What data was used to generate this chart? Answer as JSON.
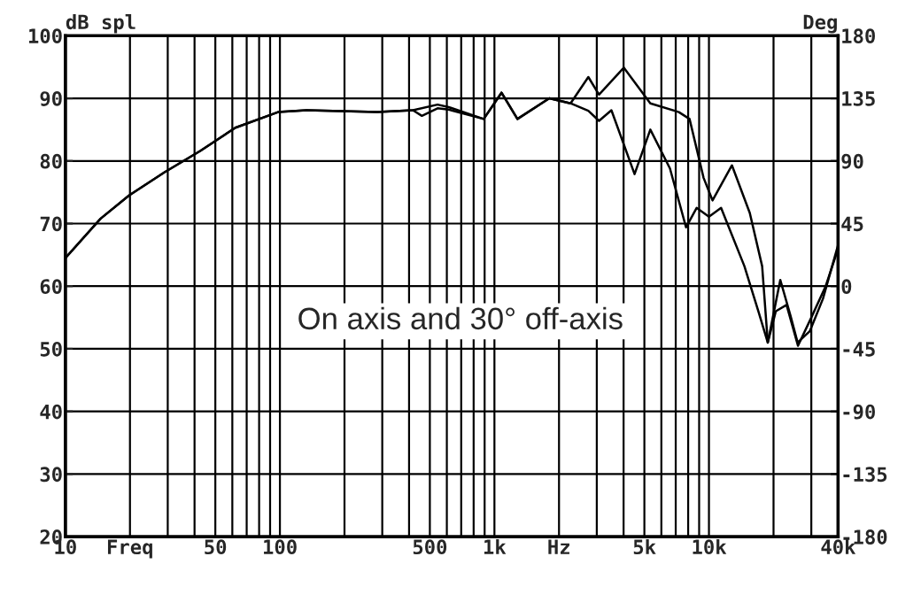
{
  "chart_data": {
    "type": "line",
    "ylabel": "dB spl",
    "y2label": "Deg",
    "annotations": [
      "On axis and 30° off-axis"
    ],
    "log": "x",
    "grid": true,
    "legend": false,
    "marker": "none",
    "line_style": "solid",
    "xlim": [
      10,
      40000
    ],
    "ylim": [
      20,
      100
    ],
    "yticks": [
      20,
      30,
      40,
      50,
      60,
      70,
      80,
      90,
      100
    ],
    "y2lim": [
      -180,
      180
    ],
    "y2ticks": [
      -180,
      -135,
      -90,
      -45,
      0,
      45,
      90,
      135,
      180
    ],
    "xticks": [
      10,
      {
        "value": 20,
        "label": "Freq"
      },
      {
        "value": 30,
        "label": null
      },
      {
        "value": 40,
        "label": null
      },
      50,
      {
        "value": 60,
        "label": null
      },
      {
        "value": 70,
        "label": null
      },
      {
        "value": 80,
        "label": null
      },
      {
        "value": 90,
        "label": null
      },
      100,
      {
        "value": 200,
        "label": null
      },
      {
        "value": 300,
        "label": null
      },
      {
        "value": 400,
        "label": null
      },
      500,
      {
        "value": 600,
        "label": null
      },
      {
        "value": 700,
        "label": null
      },
      {
        "value": 800,
        "label": null
      },
      {
        "value": 900,
        "label": null
      },
      {
        "value": 1000,
        "label": "1k"
      },
      {
        "value": 2000,
        "label": "Hz"
      },
      {
        "value": 3000,
        "label": null
      },
      {
        "value": 4000,
        "label": null
      },
      {
        "value": 5000,
        "label": "5k"
      },
      {
        "value": 6000,
        "label": null
      },
      {
        "value": 7000,
        "label": null
      },
      {
        "value": 8000,
        "label": null
      },
      {
        "value": 9000,
        "label": null
      },
      {
        "value": 10000,
        "label": "10k"
      },
      {
        "value": 20000,
        "label": null
      },
      {
        "value": 30000,
        "label": null
      },
      {
        "value": 40000,
        "label": "40k"
      }
    ],
    "series": [
      {
        "color": "#000000",
        "x": [
          10,
          14.6,
          19.8,
          29,
          42.5,
          62,
          98,
          133,
          284,
          417,
          543,
          612,
          891,
          1079,
          1280,
          1803,
          2264,
          2740,
          3073,
          4013,
          5330,
          7240,
          8120,
          9440,
          10390,
          12800,
          15500,
          17700,
          18800,
          20500,
          23000,
          26000,
          30000,
          35000,
          40000
        ],
        "values": [
          64.5,
          70.8,
          74.5,
          78.2,
          81.6,
          85.3,
          87.8,
          88.1,
          87.8,
          88.1,
          89,
          88.6,
          86.7,
          90.9,
          86.7,
          90,
          89.2,
          93.4,
          90.6,
          94.9,
          89.2,
          87.8,
          86.7,
          77.3,
          73.7,
          79.3,
          71.7,
          63.2,
          51,
          56,
          57,
          50.5,
          55,
          60,
          66
        ]
      },
      {
        "color": "#000000",
        "x": [
          10,
          14.6,
          19.8,
          29,
          42.5,
          62,
          98,
          133,
          284,
          417,
          459,
          543,
          612,
          891,
          1079,
          1280,
          1803,
          2264,
          2740,
          3073,
          3510,
          4500,
          5330,
          6580,
          7820,
          8760,
          10000,
          11390,
          14630,
          17000,
          18800,
          21500,
          24000,
          25900,
          29500,
          34000,
          40000
        ],
        "values": [
          64.5,
          70.8,
          74.5,
          78.2,
          81.6,
          85.3,
          87.8,
          88.1,
          87.8,
          88.1,
          87.2,
          88.4,
          88.2,
          86.7,
          90.9,
          86.7,
          90,
          89.2,
          88,
          86.4,
          88.1,
          77.9,
          85,
          78.8,
          69.4,
          72.5,
          71.1,
          72.5,
          63.2,
          56,
          51,
          61,
          55.3,
          51,
          52.8,
          58,
          66.6
        ]
      }
    ]
  }
}
